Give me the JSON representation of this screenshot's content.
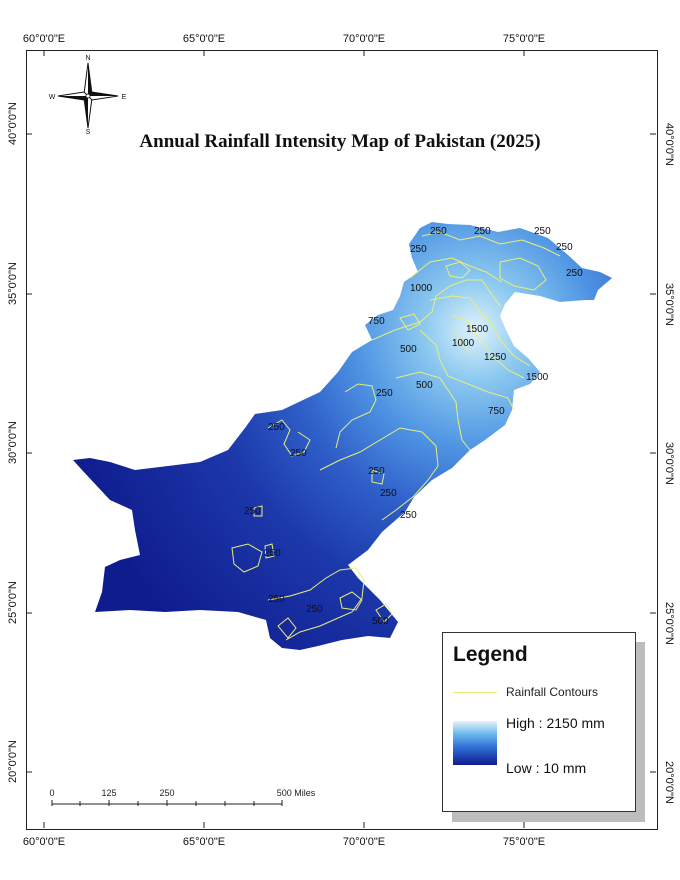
{
  "title": "Annual Rainfall Intensity Map of Pakistan (2025)",
  "axes": {
    "top_ticks": [
      "60°0'0\"E",
      "65°0'0\"E",
      "70°0'0\"E",
      "75°0'0\"E"
    ],
    "bottom_ticks": [
      "60°0'0\"E",
      "65°0'0\"E",
      "70°0'0\"E",
      "75°0'0\"E"
    ],
    "left_ticks": [
      "40°0'0\"N",
      "35°0'0\"N",
      "30°0'0\"N",
      "25°0'0\"N",
      "20°0'0\"N"
    ],
    "right_ticks": [
      "40°0'0\"N",
      "35°0'0\"N",
      "30°0'0\"N",
      "25°0'0\"N",
      "20°0'0\"N"
    ]
  },
  "north_arrow": {
    "n": "N",
    "s": "S",
    "e": "E",
    "w": "W"
  },
  "contour_labels": [
    "250",
    "250",
    "250",
    "250",
    "250",
    "250",
    "1000",
    "750",
    "500",
    "1500",
    "1000",
    "1250",
    "1500",
    "500",
    "250",
    "750",
    "250",
    "250",
    "250",
    "250",
    "250",
    "250",
    "250",
    "250",
    "250",
    "500"
  ],
  "legend": {
    "title": "Legend",
    "contour_label": "Rainfall Contours",
    "high_label": "High : 2150 mm",
    "low_label": "Low : 10 mm",
    "contour_color": "#e9ee7a"
  },
  "scale_bar": {
    "labels": [
      "0",
      "125",
      "250",
      "500 Miles"
    ]
  },
  "colors": {
    "low": "#0f1c8e",
    "mid": "#2f6fd6",
    "high": "#e6f4fb",
    "contour": "#e9ee7a"
  }
}
